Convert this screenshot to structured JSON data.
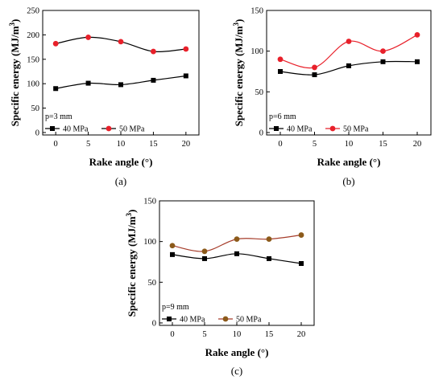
{
  "chart_data": [
    {
      "type": "line",
      "caption": "(a)",
      "note": "p=3 mm",
      "xlabel": "Rake angle (°)",
      "ylabel": "Specific energy (MJ/m³)",
      "ylabel_main": "Specific energy (MJ/m",
      "ylabel_sup": "3",
      "ylabel_close": ")",
      "x": [
        0,
        5,
        10,
        15,
        20
      ],
      "xticks": [
        "0",
        "5",
        "10",
        "15",
        "20"
      ],
      "xlim": [
        -2,
        22
      ],
      "ylim": [
        -5,
        250
      ],
      "yticks": [
        "0",
        "50",
        "100",
        "150",
        "200",
        "250"
      ],
      "ytick_values": [
        0,
        50,
        100,
        150,
        200,
        250
      ],
      "legend_location": "bottom-left",
      "series": [
        {
          "name": "40 MPa",
          "values": [
            90,
            101,
            98,
            107,
            116
          ],
          "color": "#000000",
          "marker": "square",
          "marker_color": "#000000"
        },
        {
          "name": "50 MPa",
          "values": [
            182,
            195,
            186,
            166,
            171
          ],
          "color": "#000000",
          "marker": "circle",
          "marker_color": "#e8202a"
        }
      ]
    },
    {
      "type": "line",
      "caption": "(b)",
      "note": "p=6 mm",
      "xlabel": "Rake angle (°)",
      "ylabel": "Specific energy (MJ/m³)",
      "ylabel_main": "Specific energy (MJ/m",
      "ylabel_sup": "3",
      "ylabel_close": ")",
      "x": [
        0,
        5,
        10,
        15,
        20
      ],
      "xticks": [
        "0",
        "5",
        "10",
        "15",
        "20"
      ],
      "xlim": [
        -2,
        22
      ],
      "ylim": [
        -3,
        150
      ],
      "yticks": [
        "0",
        "50",
        "100",
        "150"
      ],
      "ytick_values": [
        0,
        50,
        100,
        150
      ],
      "legend_location": "bottom-left",
      "series": [
        {
          "name": "40 MPa",
          "values": [
            75,
            71,
            82,
            87,
            87
          ],
          "color": "#000000",
          "marker": "square",
          "marker_color": "#000000"
        },
        {
          "name": "50 MPa",
          "values": [
            90,
            80,
            112,
            100,
            120
          ],
          "color": "#e8202a",
          "marker": "circle",
          "marker_color": "#e8202a"
        }
      ]
    },
    {
      "type": "line",
      "caption": "(c)",
      "note": "p=9 mm",
      "xlabel": "Rake angle (°)",
      "ylabel": "Specific energy (MJ/m³)",
      "ylabel_main": "Specific energy (MJ/m",
      "ylabel_sup": "3",
      "ylabel_close": ")",
      "x": [
        0,
        5,
        10,
        15,
        20
      ],
      "xticks": [
        "0",
        "5",
        "10",
        "15",
        "20"
      ],
      "xlim": [
        -2,
        22
      ],
      "ylim": [
        -3,
        150
      ],
      "yticks": [
        "0",
        "50",
        "100",
        "150"
      ],
      "ytick_values": [
        0,
        50,
        100,
        150
      ],
      "legend_location": "bottom-left",
      "series": [
        {
          "name": "40 MPa",
          "values": [
            84,
            79,
            85,
            79,
            73
          ],
          "color": "#000000",
          "marker": "square",
          "marker_color": "#000000"
        },
        {
          "name": "50 MPa",
          "values": [
            95,
            88,
            103,
            103,
            108
          ],
          "color": "#a63c2a",
          "marker": "circle",
          "marker_color": "#8c5a1a"
        }
      ]
    }
  ]
}
